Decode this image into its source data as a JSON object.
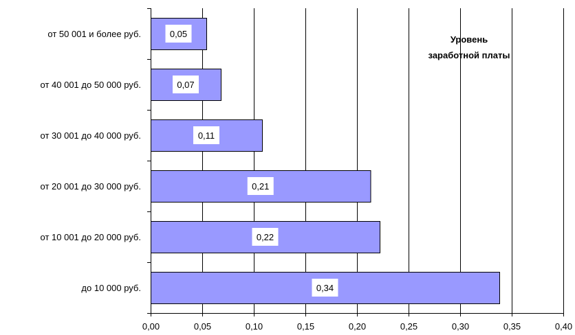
{
  "chart_data": {
    "type": "bar",
    "orientation": "horizontal",
    "annotation": [
      "Уровень",
      "заработной платы"
    ],
    "categories": [
      "от 50 001 и более руб.",
      "от 40 001 до 50 000 руб.",
      "от 30 001 до 40 000 руб.",
      "от 20 001 до 30 000 руб.",
      "от 10 001 до 20 000 руб.",
      "до 10 000 руб."
    ],
    "values": [
      0.054,
      0.068,
      0.108,
      0.213,
      0.222,
      0.338
    ],
    "data_labels": [
      "0,05",
      "0,07",
      "0,11",
      "0,21",
      "0,22",
      "0,34"
    ],
    "xlim": [
      0,
      0.4
    ],
    "xticks": [
      0,
      0.05,
      0.1,
      0.15,
      0.2,
      0.25,
      0.3,
      0.35,
      0.4
    ],
    "xtick_labels": [
      "0,00",
      "0,05",
      "0,10",
      "0,15",
      "0,20",
      "0,25",
      "0,30",
      "0,35",
      "0,40"
    ],
    "grid": "vertical",
    "colors": {
      "bar": "#9999ff",
      "bar_stroke": "#000000",
      "grid": "#000000"
    }
  }
}
